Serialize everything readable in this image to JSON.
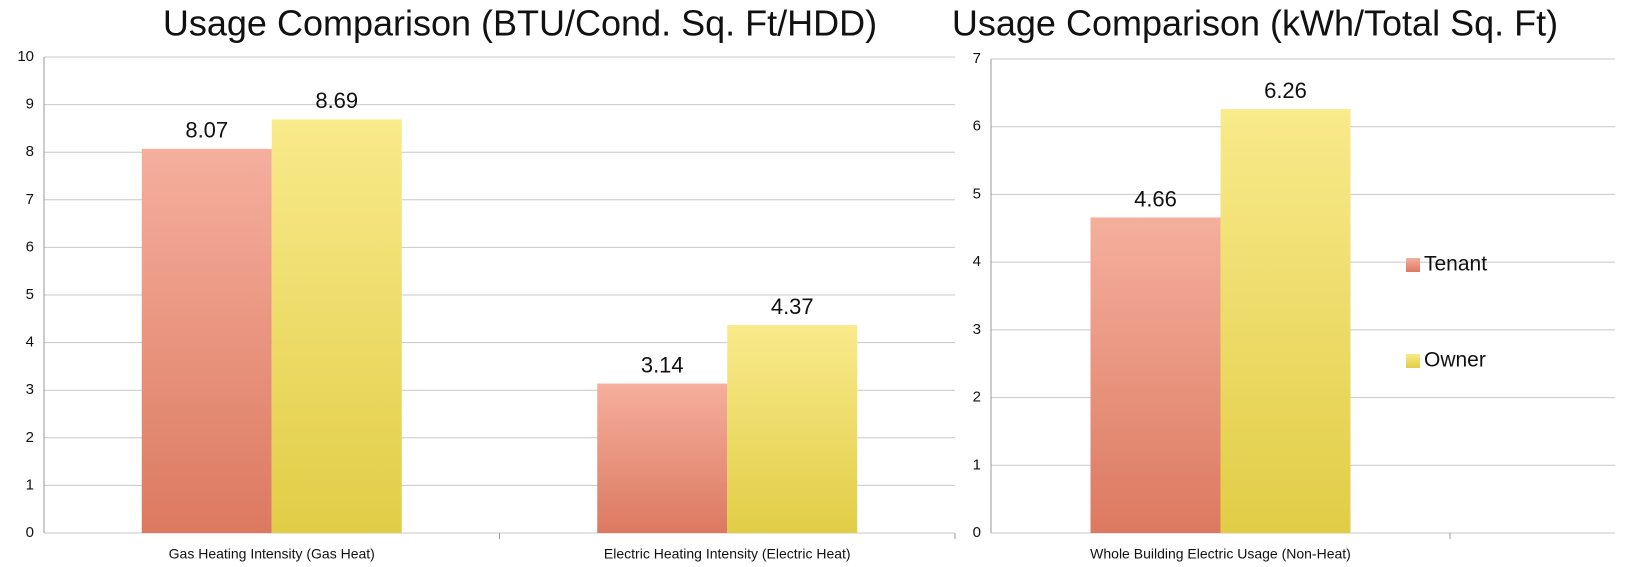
{
  "chart_data": [
    {
      "type": "bar",
      "title": "Usage Comparison (BTU/Cond. Sq. Ft/HDD)",
      "categories": [
        "Gas Heating Intensity (Gas Heat)",
        "Electric Heating Intensity (Electric Heat)"
      ],
      "series": [
        {
          "name": "Tenant",
          "color": "#ef8468",
          "values": [
            8.07,
            3.14
          ]
        },
        {
          "name": "Owner",
          "color": "#f5df4c",
          "values": [
            8.69,
            4.37
          ]
        }
      ],
      "ylim": [
        0,
        10
      ],
      "yticks": [
        0,
        1,
        2,
        3,
        4,
        5,
        6,
        7,
        8,
        9,
        10
      ],
      "grid": true
    },
    {
      "type": "bar",
      "title": "Usage Comparison (kWh/Total Sq. Ft)",
      "categories": [
        "Whole Building Electric Usage (Non-Heat)"
      ],
      "series": [
        {
          "name": "Tenant",
          "color": "#ef8468",
          "values": [
            4.66
          ]
        },
        {
          "name": "Owner",
          "color": "#f5df4c",
          "values": [
            6.26
          ]
        }
      ],
      "ylim": [
        0,
        7
      ],
      "yticks": [
        0,
        1,
        2,
        3,
        4,
        5,
        6,
        7
      ],
      "grid": true,
      "legend": "right"
    }
  ]
}
